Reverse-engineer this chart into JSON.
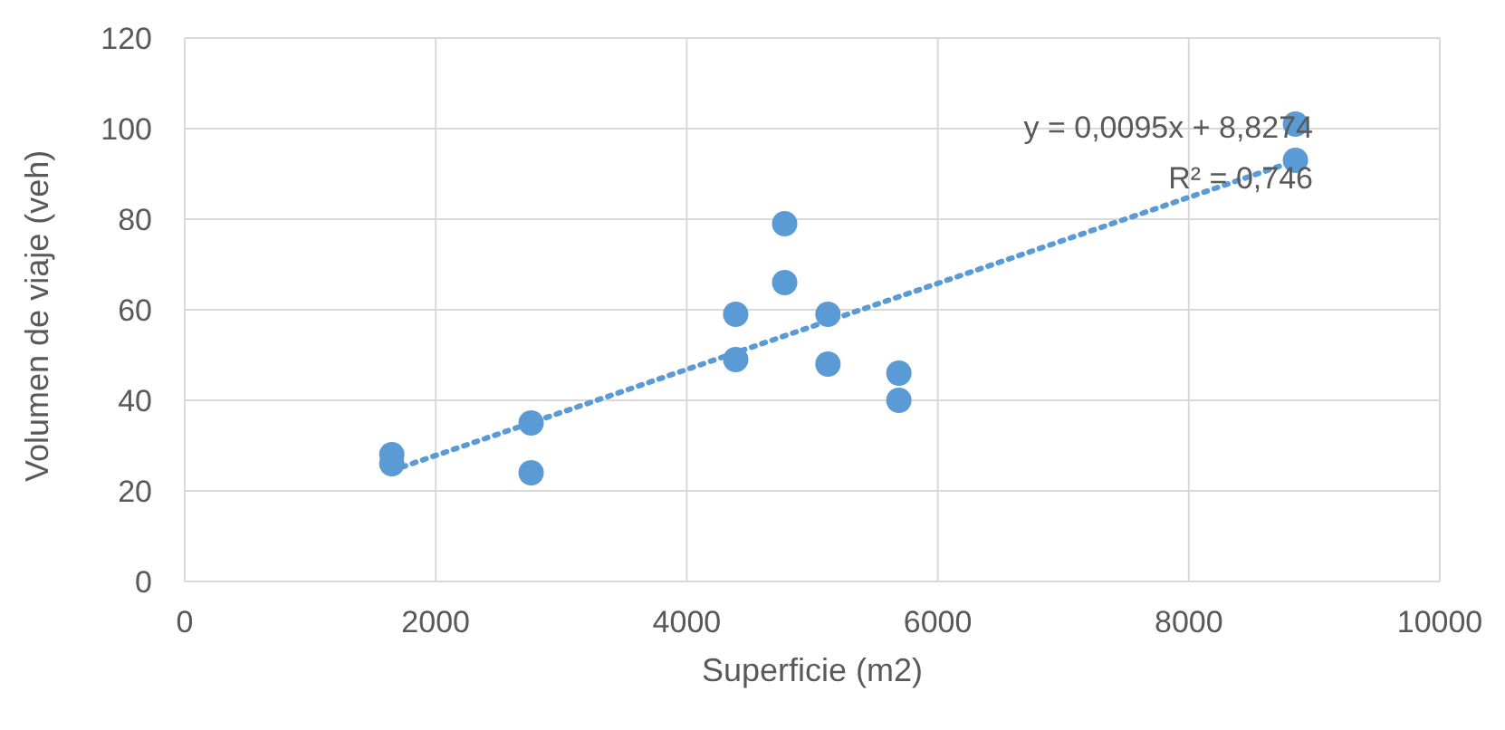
{
  "chart_data": {
    "type": "scatter",
    "xlabel": "Superficie (m2)",
    "ylabel": "Volumen de viaje (veh)",
    "xlim": [
      0,
      10000
    ],
    "xticks": [
      0,
      2000,
      4000,
      6000,
      8000,
      10000
    ],
    "ylim": [
      0,
      120
    ],
    "yticks": [
      0,
      20,
      40,
      60,
      80,
      100,
      120
    ],
    "grid": true,
    "marker": "circle",
    "series": [
      {
        "type": "scatter",
        "color": "#5b9bd5",
        "x": [
          1650,
          1650,
          2760,
          2760,
          4390,
          4390,
          4780,
          4780,
          5125,
          5125,
          5690,
          5690,
          8850,
          8850
        ],
        "values": [
          28,
          26,
          35,
          24,
          59,
          49,
          79,
          66,
          59,
          48,
          46,
          40,
          101,
          93
        ]
      },
      {
        "type": "line",
        "color": "#5b9bd5",
        "line_style": "dotted",
        "marker": "none",
        "x": [
          1650,
          8850
        ],
        "values": [
          24.5,
          92.9
        ]
      }
    ],
    "annotations": [
      "y = 0,0095x + 8,8274",
      "R² = 0,746"
    ]
  }
}
